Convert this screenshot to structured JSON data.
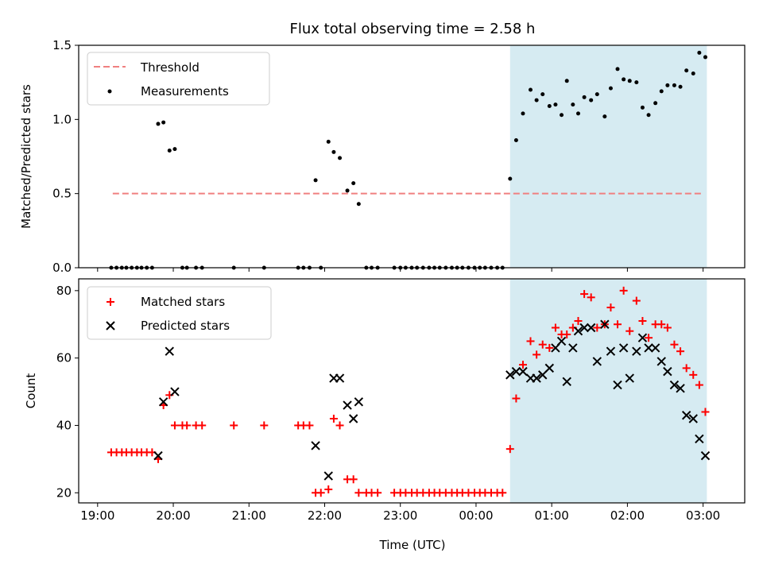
{
  "title": "Flux total observing time = 2.58 h",
  "colors": {
    "threshold": "#f08080",
    "measure": "#000000",
    "matched": "#ff0000",
    "predicted": "#000000",
    "shade": "#add8e6"
  },
  "chart_data": [
    {
      "type": "scatter",
      "ylabel": "Matched/Predicted stars",
      "xlim": [
        -0.25,
        8.55
      ],
      "ylim": [
        0,
        1.5
      ],
      "yticks": [
        "0.0",
        "0.5",
        "1.0",
        "1.5"
      ],
      "yticks_values": [
        0,
        0.5,
        1.0,
        1.5
      ],
      "shaded_region": [
        5.45,
        8.05
      ],
      "legend": {
        "placement": "top-left",
        "entries": [
          "Threshold",
          "Measurements"
        ]
      },
      "threshold": {
        "name": "Threshold",
        "y": 0.5,
        "x": [
          0.2,
          8.0
        ],
        "style": "dashed"
      },
      "measurements": {
        "name": "Measurements",
        "points": [
          [
            0.18,
            0
          ],
          [
            0.25,
            0
          ],
          [
            0.32,
            0
          ],
          [
            0.38,
            0
          ],
          [
            0.45,
            0
          ],
          [
            0.52,
            0
          ],
          [
            0.58,
            0
          ],
          [
            0.65,
            0
          ],
          [
            0.72,
            0
          ],
          [
            0.8,
            0.97
          ],
          [
            0.87,
            0.98
          ],
          [
            0.95,
            0.79
          ],
          [
            1.02,
            0.8
          ],
          [
            1.12,
            0
          ],
          [
            1.18,
            0
          ],
          [
            1.3,
            0
          ],
          [
            1.38,
            0
          ],
          [
            1.8,
            0
          ],
          [
            2.2,
            0
          ],
          [
            2.65,
            0
          ],
          [
            2.72,
            0
          ],
          [
            2.8,
            0
          ],
          [
            2.88,
            0.59
          ],
          [
            2.95,
            0
          ],
          [
            3.05,
            0.85
          ],
          [
            3.12,
            0.78
          ],
          [
            3.2,
            0.74
          ],
          [
            3.3,
            0.52
          ],
          [
            3.38,
            0.57
          ],
          [
            3.45,
            0.43
          ],
          [
            3.55,
            0
          ],
          [
            3.62,
            0
          ],
          [
            3.7,
            0
          ],
          [
            3.92,
            0
          ],
          [
            4.0,
            0
          ],
          [
            4.07,
            0
          ],
          [
            4.15,
            0
          ],
          [
            4.22,
            0
          ],
          [
            4.3,
            0
          ],
          [
            4.38,
            0
          ],
          [
            4.45,
            0
          ],
          [
            4.52,
            0
          ],
          [
            4.6,
            0
          ],
          [
            4.68,
            0
          ],
          [
            4.75,
            0
          ],
          [
            4.82,
            0
          ],
          [
            4.9,
            0
          ],
          [
            4.98,
            0
          ],
          [
            5.05,
            0
          ],
          [
            5.12,
            0
          ],
          [
            5.2,
            0
          ],
          [
            5.28,
            0
          ],
          [
            5.35,
            0
          ],
          [
            5.45,
            0.6
          ],
          [
            5.53,
            0.86
          ],
          [
            5.62,
            1.04
          ],
          [
            5.72,
            1.2
          ],
          [
            5.8,
            1.13
          ],
          [
            5.88,
            1.17
          ],
          [
            5.97,
            1.09
          ],
          [
            6.05,
            1.1
          ],
          [
            6.13,
            1.03
          ],
          [
            6.2,
            1.26
          ],
          [
            6.28,
            1.1
          ],
          [
            6.35,
            1.04
          ],
          [
            6.43,
            1.15
          ],
          [
            6.52,
            1.13
          ],
          [
            6.6,
            1.17
          ],
          [
            6.7,
            1.02
          ],
          [
            6.78,
            1.21
          ],
          [
            6.87,
            1.34
          ],
          [
            6.95,
            1.27
          ],
          [
            7.03,
            1.26
          ],
          [
            7.12,
            1.25
          ],
          [
            7.2,
            1.08
          ],
          [
            7.28,
            1.03
          ],
          [
            7.37,
            1.11
          ],
          [
            7.45,
            1.19
          ],
          [
            7.53,
            1.23
          ],
          [
            7.62,
            1.23
          ],
          [
            7.7,
            1.22
          ],
          [
            7.78,
            1.33
          ],
          [
            7.87,
            1.31
          ],
          [
            7.95,
            1.45
          ],
          [
            8.03,
            1.42
          ]
        ]
      }
    },
    {
      "type": "scatter",
      "xlabel": "Time (UTC)",
      "ylabel": "Count",
      "xlim": [
        -0.25,
        8.55
      ],
      "ylim": [
        17,
        83.5
      ],
      "yticks": [
        "20",
        "40",
        "60",
        "80"
      ],
      "yticks_values": [
        20,
        40,
        60,
        80
      ],
      "xticks": [
        "19:00",
        "20:00",
        "21:00",
        "22:00",
        "23:00",
        "00:00",
        "01:00",
        "02:00",
        "03:00"
      ],
      "xticks_values": [
        0,
        1,
        2,
        3,
        4,
        5,
        6,
        7,
        8
      ],
      "shaded_region": [
        5.45,
        8.05
      ],
      "legend": {
        "placement": "top-left",
        "entries": [
          "Matched stars",
          "Predicted stars"
        ]
      },
      "series": [
        {
          "name": "Matched stars",
          "marker": "plus",
          "points": [
            [
              0.18,
              32
            ],
            [
              0.25,
              32
            ],
            [
              0.32,
              32
            ],
            [
              0.38,
              32
            ],
            [
              0.45,
              32
            ],
            [
              0.52,
              32
            ],
            [
              0.58,
              32
            ],
            [
              0.65,
              32
            ],
            [
              0.72,
              32
            ],
            [
              0.8,
              30
            ],
            [
              0.87,
              46
            ],
            [
              0.95,
              49
            ],
            [
              1.02,
              40
            ],
            [
              1.12,
              40
            ],
            [
              1.18,
              40
            ],
            [
              1.3,
              40
            ],
            [
              1.38,
              40
            ],
            [
              1.8,
              40
            ],
            [
              2.2,
              40
            ],
            [
              2.65,
              40
            ],
            [
              2.72,
              40
            ],
            [
              2.8,
              40
            ],
            [
              2.88,
              20
            ],
            [
              2.95,
              20
            ],
            [
              3.05,
              21
            ],
            [
              3.12,
              42
            ],
            [
              3.2,
              40
            ],
            [
              3.3,
              24
            ],
            [
              3.38,
              24
            ],
            [
              3.45,
              20
            ],
            [
              3.55,
              20
            ],
            [
              3.62,
              20
            ],
            [
              3.7,
              20
            ],
            [
              3.92,
              20
            ],
            [
              4.0,
              20
            ],
            [
              4.07,
              20
            ],
            [
              4.15,
              20
            ],
            [
              4.22,
              20
            ],
            [
              4.3,
              20
            ],
            [
              4.38,
              20
            ],
            [
              4.45,
              20
            ],
            [
              4.52,
              20
            ],
            [
              4.6,
              20
            ],
            [
              4.68,
              20
            ],
            [
              4.75,
              20
            ],
            [
              4.82,
              20
            ],
            [
              4.9,
              20
            ],
            [
              4.98,
              20
            ],
            [
              5.05,
              20
            ],
            [
              5.12,
              20
            ],
            [
              5.2,
              20
            ],
            [
              5.28,
              20
            ],
            [
              5.35,
              20
            ],
            [
              5.45,
              33
            ],
            [
              5.53,
              48
            ],
            [
              5.62,
              58
            ],
            [
              5.72,
              65
            ],
            [
              5.8,
              61
            ],
            [
              5.88,
              64
            ],
            [
              5.97,
              63
            ],
            [
              6.05,
              69
            ],
            [
              6.13,
              67
            ],
            [
              6.2,
              67
            ],
            [
              6.28,
              69
            ],
            [
              6.35,
              71
            ],
            [
              6.43,
              79
            ],
            [
              6.52,
              78
            ],
            [
              6.6,
              69
            ],
            [
              6.7,
              70
            ],
            [
              6.78,
              75
            ],
            [
              6.87,
              70
            ],
            [
              6.95,
              80
            ],
            [
              7.03,
              68
            ],
            [
              7.12,
              77
            ],
            [
              7.2,
              71
            ],
            [
              7.28,
              66
            ],
            [
              7.37,
              70
            ],
            [
              7.45,
              70
            ],
            [
              7.53,
              69
            ],
            [
              7.62,
              64
            ],
            [
              7.7,
              62
            ],
            [
              7.78,
              57
            ],
            [
              7.87,
              55
            ],
            [
              7.95,
              52
            ],
            [
              8.03,
              44
            ]
          ]
        },
        {
          "name": "Predicted stars",
          "marker": "x",
          "points": [
            [
              0.8,
              31
            ],
            [
              0.87,
              47
            ],
            [
              0.95,
              62
            ],
            [
              1.02,
              50
            ],
            [
              2.88,
              34
            ],
            [
              3.05,
              25
            ],
            [
              3.12,
              54
            ],
            [
              3.2,
              54
            ],
            [
              3.3,
              46
            ],
            [
              3.38,
              42
            ],
            [
              3.45,
              47
            ],
            [
              5.45,
              55
            ],
            [
              5.53,
              56
            ],
            [
              5.62,
              56
            ],
            [
              5.72,
              54
            ],
            [
              5.8,
              54
            ],
            [
              5.88,
              55
            ],
            [
              5.97,
              57
            ],
            [
              6.05,
              63
            ],
            [
              6.13,
              65
            ],
            [
              6.2,
              53
            ],
            [
              6.28,
              63
            ],
            [
              6.35,
              68
            ],
            [
              6.43,
              69
            ],
            [
              6.52,
              69
            ],
            [
              6.6,
              59
            ],
            [
              6.7,
              70
            ],
            [
              6.78,
              62
            ],
            [
              6.87,
              52
            ],
            [
              6.95,
              63
            ],
            [
              7.03,
              54
            ],
            [
              7.12,
              62
            ],
            [
              7.2,
              66
            ],
            [
              7.28,
              63
            ],
            [
              7.37,
              63
            ],
            [
              7.45,
              59
            ],
            [
              7.53,
              56
            ],
            [
              7.62,
              52
            ],
            [
              7.7,
              51
            ],
            [
              7.78,
              43
            ],
            [
              7.87,
              42
            ],
            [
              7.95,
              36
            ],
            [
              8.03,
              31
            ]
          ]
        }
      ]
    }
  ]
}
